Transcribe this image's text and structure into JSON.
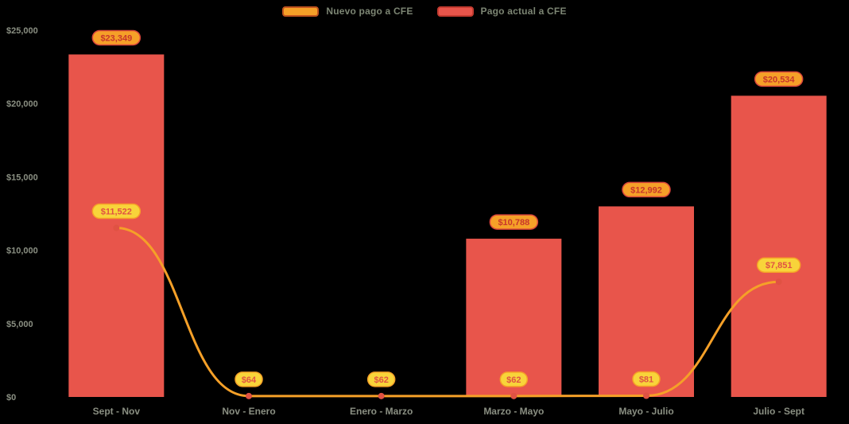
{
  "legend": {
    "position": "top-center",
    "items": [
      {
        "label": "Nuevo pago a CFE",
        "color": "#F5A028",
        "border": "#C1541F"
      },
      {
        "label": "Pago actual a CFE",
        "color": "#E8554B",
        "border": "#C43B30"
      }
    ]
  },
  "chart_data": {
    "type": "combo",
    "title": "",
    "xlabel": "",
    "ylabel": "",
    "background": "#000000",
    "grid": false,
    "ylim": [
      0,
      25000
    ],
    "yticks": [
      0,
      5000,
      10000,
      15000,
      20000,
      25000
    ],
    "ytick_labels": [
      "$0",
      "$5,000",
      "$10,000",
      "$15,000",
      "$20,000",
      "$25,000"
    ],
    "categories": [
      "Sept - Nov",
      "Nov - Enero",
      "Enero - Marzo",
      "Marzo - Mayo",
      "Mayo - Julio",
      "Julio - Sept"
    ],
    "series": [
      {
        "name": "Pago actual a CFE",
        "type": "bar",
        "color": "#E8554B",
        "values": [
          23349,
          0,
          0,
          10788,
          12992,
          20534
        ],
        "labels": [
          "$23,349",
          null,
          null,
          "$10,788",
          "$12,992",
          "$20,534"
        ]
      },
      {
        "name": "Nuevo pago a CFE",
        "type": "line",
        "color": "#F5A028",
        "values": [
          11522,
          64,
          62,
          62,
          81,
          7851
        ],
        "labels": [
          "$11,522",
          "$64",
          "$62",
          "$62",
          "$81",
          "$7,851"
        ]
      }
    ]
  },
  "styles": {
    "axis_text_color": "#8a8f82",
    "legend_text_color": "#7c8573",
    "marker_color": "#E05243",
    "badges": {
      "bar": {
        "bg": "#F5A028",
        "border": "#D9453A",
        "text": "#C8362B"
      },
      "line": {
        "bg": "#F8D43A",
        "border": "#F5A028",
        "text": "#E05243"
      }
    }
  }
}
